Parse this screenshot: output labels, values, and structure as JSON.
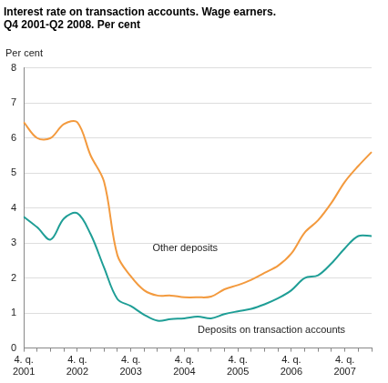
{
  "chart_data": {
    "type": "line",
    "title": [
      "Interest rate on transaction accounts. Wage earners.",
      "Q4 2001-Q2 2008. Per cent"
    ],
    "y_label": "Per cent",
    "categories": [
      [
        "4. q.",
        "2001"
      ],
      null,
      null,
      null,
      [
        "4. q.",
        "2002"
      ],
      null,
      null,
      null,
      [
        "4. q.",
        "2003"
      ],
      null,
      null,
      null,
      [
        "4. q.",
        "2004"
      ],
      null,
      null,
      null,
      [
        "4. q.",
        "2005"
      ],
      null,
      null,
      null,
      [
        "4. q.",
        "2006"
      ],
      null,
      null,
      null,
      [
        "4. q.",
        "2007"
      ],
      null,
      null
    ],
    "series": [
      {
        "name": "Other deposits",
        "color": "#f39a3e",
        "values": [
          6.45,
          6.0,
          6.0,
          6.4,
          6.45,
          5.5,
          4.75,
          2.65,
          2.05,
          1.65,
          1.5,
          1.5,
          1.45,
          1.45,
          1.47,
          1.68,
          1.8,
          1.95,
          2.15,
          2.35,
          2.7,
          3.3,
          3.65,
          4.15,
          4.75,
          5.2,
          5.6
        ]
      },
      {
        "name": "Deposits on transaction accounts",
        "color": "#1f9e96",
        "values": [
          3.75,
          3.45,
          3.1,
          3.7,
          3.85,
          3.25,
          2.3,
          1.4,
          1.2,
          0.95,
          0.78,
          0.83,
          0.85,
          0.9,
          0.85,
          0.97,
          1.05,
          1.12,
          1.25,
          1.42,
          1.65,
          2.0,
          2.08,
          2.42,
          2.85,
          3.2,
          3.2
        ]
      }
    ],
    "ylim": [
      0,
      8
    ],
    "yticks": [
      0,
      1,
      2,
      3,
      4,
      5,
      6,
      7,
      8
    ],
    "grid": true
  }
}
